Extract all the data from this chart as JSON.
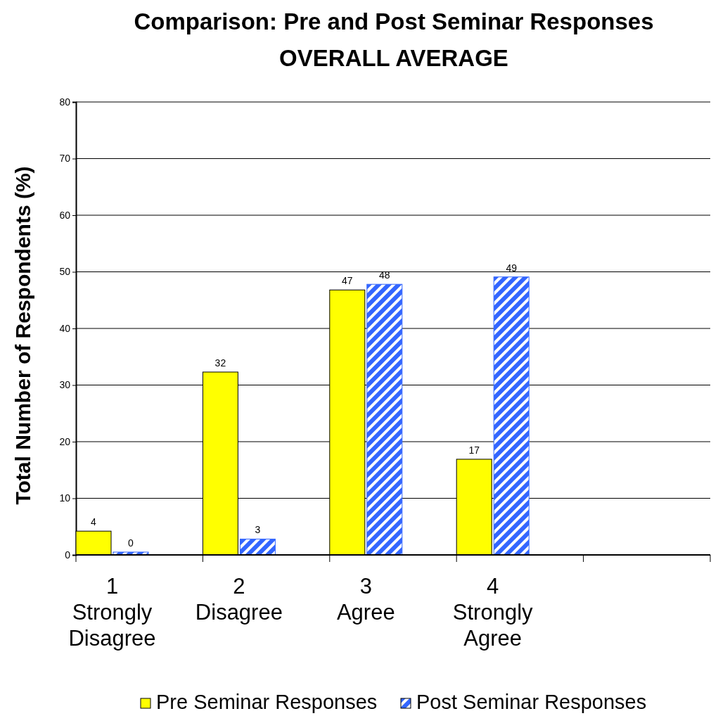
{
  "chart_data": {
    "type": "bar",
    "title": "Comparison: Pre and Post Seminar Responses",
    "subtitle": "OVERALL AVERAGE",
    "ylabel": "Total Number of Respondents (%)",
    "categories": [
      "1\nStrongly\nDisagree",
      "2\nDisagree",
      "3\nAgree",
      "4\nStrongly\nAgree",
      null
    ],
    "series": [
      {
        "name": "Pre Seminar Responses",
        "color": "#ffff00",
        "values": [
          4.2,
          32.3,
          46.8,
          16.9,
          null
        ],
        "value_labels": [
          "4",
          "32",
          "47",
          "17",
          null
        ]
      },
      {
        "name": "Post Seminar Responses",
        "color": "#3366ff",
        "values": [
          0.5,
          2.8,
          47.8,
          49.1,
          null
        ],
        "value_labels": [
          "0",
          "3",
          "48",
          "49",
          null
        ]
      }
    ],
    "ylim": [
      0,
      80
    ],
    "yticks": [
      0,
      10,
      20,
      30,
      40,
      50,
      60,
      70,
      80
    ],
    "grid": "y",
    "legend": "bottom"
  }
}
